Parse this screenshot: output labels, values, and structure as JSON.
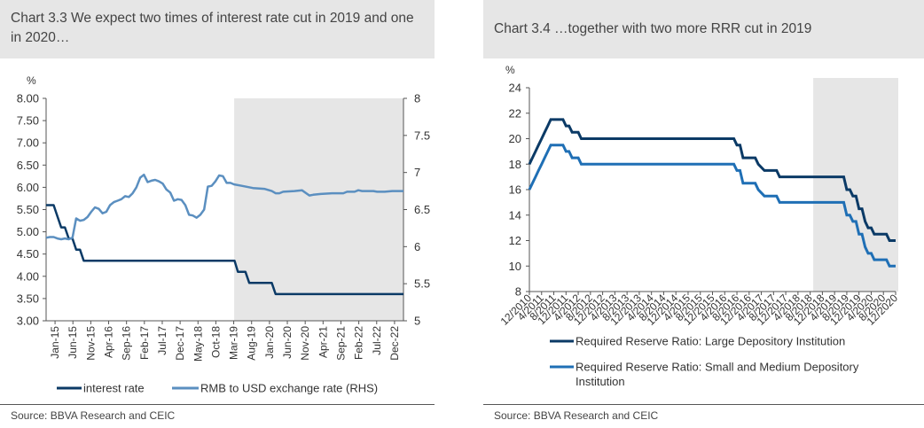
{
  "left_panel": {
    "title": "Chart 3.3 We expect two times of interest rate cut in 2019 and one in 2020…",
    "source": "Source: BBVA Research and CEIC"
  },
  "right_panel": {
    "title": "Chart 3.4 …together with two more RRR cut in 2019",
    "source": "Source: BBVA Research and CEIC"
  },
  "colors": {
    "dark_navy": "#0b3a66",
    "mid_blue": "#1f6fb5",
    "light_blue": "#5b8fc0",
    "forecast_shade": "#e6e6e6"
  },
  "chart_data": [
    {
      "type": "line",
      "title": "",
      "unit_left": "%",
      "ylim_left": [
        3.0,
        8.0
      ],
      "ylim_right": [
        5,
        8
      ],
      "yticks_left": [
        "3.00",
        "3.50",
        "4.00",
        "4.50",
        "5.00",
        "5.50",
        "6.00",
        "6.50",
        "7.00",
        "7.50",
        "8.00"
      ],
      "yticks_right": [
        "5",
        "5.5",
        "6",
        "6.5",
        "7",
        "7.5",
        "8"
      ],
      "x_ticks": [
        "Jan-15",
        "Jun-15",
        "Nov-15",
        "Apr-16",
        "Sep-16",
        "Feb-17",
        "Jul-17",
        "Dec-17",
        "May-18",
        "Oct-18",
        "Mar-19",
        "Aug-19",
        "Jan-20",
        "Jun-20",
        "Nov-20",
        "Apr-21",
        "Sep-21",
        "Feb-22",
        "Jul-22",
        "Dec-22"
      ],
      "x_range": [
        0,
        95
      ],
      "forecast_start": 50,
      "legend_position": "bottom",
      "series": [
        {
          "name": "interest rate",
          "axis": "left",
          "color": "#0b3a66",
          "points": [
            [
              0,
              5.6
            ],
            [
              2,
              5.6
            ],
            [
              3,
              5.35
            ],
            [
              4,
              5.1
            ],
            [
              5,
              5.1
            ],
            [
              6,
              4.85
            ],
            [
              7,
              4.85
            ],
            [
              8,
              4.6
            ],
            [
              9,
              4.6
            ],
            [
              10,
              4.35
            ],
            [
              50,
              4.35
            ],
            [
              50.1,
              4.35
            ],
            [
              51,
              4.1
            ],
            [
              53,
              4.1
            ],
            [
              54,
              3.85
            ],
            [
              60,
              3.85
            ],
            [
              61,
              3.6
            ],
            [
              95,
              3.6
            ]
          ]
        },
        {
          "name": "RMB to USD exchange rate (RHS)",
          "axis": "right",
          "color": "#5b8fc0",
          "points": [
            [
              0,
              6.12
            ],
            [
              1,
              6.13
            ],
            [
              2,
              6.13
            ],
            [
              3,
              6.11
            ],
            [
              4,
              6.1
            ],
            [
              5,
              6.11
            ],
            [
              6,
              6.1
            ],
            [
              7,
              6.12
            ],
            [
              8,
              6.38
            ],
            [
              9,
              6.35
            ],
            [
              10,
              6.36
            ],
            [
              11,
              6.4
            ],
            [
              12,
              6.47
            ],
            [
              13,
              6.53
            ],
            [
              14,
              6.51
            ],
            [
              15,
              6.45
            ],
            [
              16,
              6.47
            ],
            [
              17,
              6.56
            ],
            [
              18,
              6.6
            ],
            [
              19,
              6.62
            ],
            [
              20,
              6.64
            ],
            [
              21,
              6.68
            ],
            [
              22,
              6.67
            ],
            [
              23,
              6.72
            ],
            [
              24,
              6.8
            ],
            [
              25,
              6.93
            ],
            [
              26,
              6.97
            ],
            [
              27,
              6.87
            ],
            [
              28,
              6.89
            ],
            [
              29,
              6.9
            ],
            [
              30,
              6.88
            ],
            [
              31,
              6.85
            ],
            [
              32,
              6.77
            ],
            [
              33,
              6.73
            ],
            [
              34,
              6.62
            ],
            [
              35,
              6.64
            ],
            [
              36,
              6.63
            ],
            [
              37,
              6.56
            ],
            [
              38,
              6.43
            ],
            [
              39,
              6.42
            ],
            [
              40,
              6.39
            ],
            [
              41,
              6.43
            ],
            [
              42,
              6.5
            ],
            [
              43,
              6.81
            ],
            [
              44,
              6.82
            ],
            [
              45,
              6.88
            ],
            [
              46,
              6.96
            ],
            [
              47,
              6.95
            ],
            [
              48,
              6.86
            ],
            [
              49,
              6.86
            ],
            [
              50,
              6.84
            ],
            [
              52,
              6.82
            ],
            [
              55,
              6.79
            ],
            [
              58,
              6.78
            ],
            [
              60,
              6.75
            ],
            [
              61,
              6.72
            ],
            [
              62,
              6.72
            ],
            [
              63,
              6.74
            ],
            [
              66,
              6.75
            ],
            [
              68,
              6.76
            ],
            [
              70,
              6.69
            ],
            [
              71,
              6.7
            ],
            [
              73,
              6.71
            ],
            [
              76,
              6.72
            ],
            [
              79,
              6.72
            ],
            [
              80,
              6.74
            ],
            [
              82,
              6.74
            ],
            [
              83,
              6.76
            ],
            [
              84,
              6.75
            ],
            [
              87,
              6.75
            ],
            [
              88,
              6.74
            ],
            [
              90,
              6.74
            ],
            [
              92,
              6.75
            ],
            [
              95,
              6.75
            ]
          ]
        }
      ]
    },
    {
      "type": "line",
      "title": "",
      "unit_left": "%",
      "ylim": [
        8,
        24
      ],
      "yticks": [
        "8",
        "10",
        "12",
        "14",
        "16",
        "18",
        "20",
        "22",
        "24"
      ],
      "x_ticks": [
        "12/2010",
        "4/2011",
        "8/2011",
        "12/2011",
        "4/2012",
        "8/2012",
        "12/2012",
        "4/2013",
        "8/2013",
        "12/2013",
        "4/2014",
        "8/2014",
        "12/2014",
        "4/2015",
        "8/2015",
        "12/2015",
        "4/2016",
        "8/2016",
        "12/2016",
        "4/2017",
        "8/2017",
        "12/2017",
        "4/2018",
        "8/2018",
        "12/2018",
        "4/2019",
        "8/2019",
        "12/2019",
        "4/2020",
        "8/2020",
        "12/2020"
      ],
      "x_range": [
        0,
        120
      ],
      "forecast_start": 93,
      "legend_position": "bottom",
      "series": [
        {
          "name": "Required Reserve Ratio: Large Depository Institution",
          "color": "#0b3a66",
          "points": [
            [
              0,
              18
            ],
            [
              1,
              18.5
            ],
            [
              2,
              19
            ],
            [
              3,
              19.5
            ],
            [
              4,
              20
            ],
            [
              5,
              20.5
            ],
            [
              6,
              21
            ],
            [
              7,
              21.5
            ],
            [
              11,
              21.5
            ],
            [
              12,
              21
            ],
            [
              13,
              21
            ],
            [
              14,
              20.5
            ],
            [
              16,
              20.5
            ],
            [
              17,
              20
            ],
            [
              67,
              20
            ],
            [
              68,
              19.5
            ],
            [
              69,
              19.5
            ],
            [
              70,
              18.5
            ],
            [
              74,
              18.5
            ],
            [
              75,
              18
            ],
            [
              77,
              17.5
            ],
            [
              81,
              17.5
            ],
            [
              82,
              17
            ],
            [
              103,
              17
            ],
            [
              104,
              16
            ],
            [
              105,
              16
            ],
            [
              106,
              15.5
            ],
            [
              107,
              15.5
            ],
            [
              108,
              14.5
            ],
            [
              109,
              14.5
            ],
            [
              110,
              13.5
            ],
            [
              111,
              13
            ],
            [
              112,
              13
            ],
            [
              113,
              12.5
            ],
            [
              117,
              12.5
            ],
            [
              118,
              12
            ],
            [
              120,
              12
            ]
          ]
        },
        {
          "name": "Required Reserve Ratio: Small and Medium Depository Institution",
          "color": "#1f6fb5",
          "points": [
            [
              0,
              16
            ],
            [
              1,
              16.5
            ],
            [
              2,
              17
            ],
            [
              3,
              17.5
            ],
            [
              4,
              18
            ],
            [
              5,
              18.5
            ],
            [
              6,
              19
            ],
            [
              7,
              19.5
            ],
            [
              11,
              19.5
            ],
            [
              12,
              19
            ],
            [
              13,
              19
            ],
            [
              14,
              18.5
            ],
            [
              16,
              18.5
            ],
            [
              17,
              18
            ],
            [
              67,
              18
            ],
            [
              68,
              17.5
            ],
            [
              69,
              17.5
            ],
            [
              70,
              16.5
            ],
            [
              74,
              16.5
            ],
            [
              75,
              16
            ],
            [
              77,
              15.5
            ],
            [
              81,
              15.5
            ],
            [
              82,
              15
            ],
            [
              103,
              15
            ],
            [
              104,
              14
            ],
            [
              105,
              14
            ],
            [
              106,
              13.5
            ],
            [
              107,
              13.5
            ],
            [
              108,
              12.5
            ],
            [
              109,
              12.5
            ],
            [
              110,
              11.5
            ],
            [
              111,
              11
            ],
            [
              112,
              11
            ],
            [
              113,
              10.5
            ],
            [
              117,
              10.5
            ],
            [
              118,
              10
            ],
            [
              120,
              10
            ]
          ]
        }
      ]
    }
  ]
}
